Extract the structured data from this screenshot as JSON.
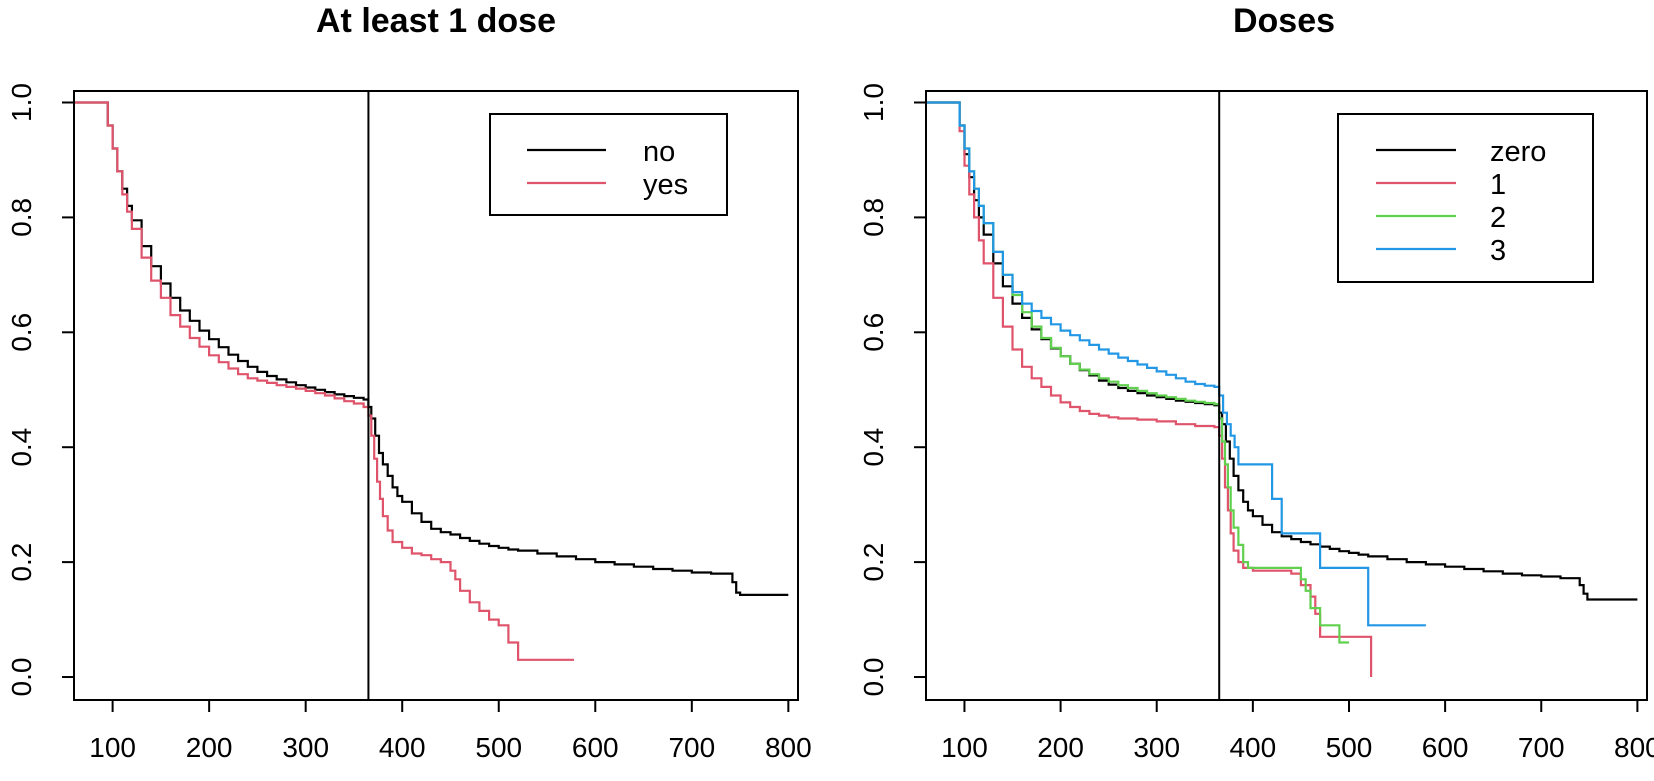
{
  "chart_data": [
    {
      "type": "line",
      "subtype": "step",
      "title": "At least 1 dose",
      "xlabel": "",
      "ylabel": "",
      "xlim": [
        60,
        810
      ],
      "ylim": [
        -0.04,
        1.02
      ],
      "xticks": [
        100,
        200,
        300,
        400,
        500,
        600,
        700,
        800
      ],
      "yticks": [
        0.0,
        0.2,
        0.4,
        0.6,
        0.8,
        1.0
      ],
      "xtick_labels": [
        "100",
        "200",
        "300",
        "400",
        "500",
        "600",
        "700",
        "800"
      ],
      "ytick_labels": [
        "0.0",
        "0.2",
        "0.4",
        "0.6",
        "0.8",
        "1.0"
      ],
      "vline": 365,
      "legend": {
        "position": "top-right",
        "entries": [
          {
            "label": "no",
            "color": "#000000"
          },
          {
            "label": "yes",
            "color": "#DF536B"
          }
        ]
      },
      "series": [
        {
          "name": "no",
          "color": "#000000",
          "x": [
            60,
            91,
            95,
            100,
            105,
            110,
            115,
            120,
            130,
            140,
            150,
            160,
            170,
            180,
            190,
            200,
            210,
            220,
            230,
            240,
            250,
            260,
            270,
            280,
            290,
            300,
            310,
            320,
            330,
            340,
            350,
            360,
            365,
            368,
            372,
            376,
            380,
            385,
            390,
            395,
            400,
            410,
            420,
            430,
            440,
            450,
            460,
            470,
            480,
            490,
            500,
            510,
            520,
            540,
            560,
            580,
            600,
            620,
            640,
            660,
            680,
            700,
            720,
            738,
            742,
            746,
            750,
            800
          ],
          "y": [
            1.0,
            1.0,
            0.96,
            0.92,
            0.88,
            0.85,
            0.82,
            0.795,
            0.75,
            0.715,
            0.685,
            0.66,
            0.638,
            0.62,
            0.603,
            0.588,
            0.574,
            0.561,
            0.55,
            0.54,
            0.531,
            0.524,
            0.518,
            0.513,
            0.508,
            0.504,
            0.5,
            0.496,
            0.492,
            0.489,
            0.486,
            0.483,
            0.47,
            0.45,
            0.42,
            0.39,
            0.37,
            0.35,
            0.33,
            0.315,
            0.305,
            0.285,
            0.27,
            0.258,
            0.252,
            0.248,
            0.242,
            0.237,
            0.232,
            0.228,
            0.225,
            0.222,
            0.22,
            0.215,
            0.21,
            0.205,
            0.2,
            0.196,
            0.192,
            0.188,
            0.185,
            0.182,
            0.18,
            0.18,
            0.165,
            0.147,
            0.143,
            0.143
          ]
        },
        {
          "name": "yes",
          "color": "#DF536B",
          "x": [
            60,
            91,
            95,
            100,
            105,
            110,
            115,
            120,
            130,
            140,
            150,
            160,
            170,
            180,
            190,
            200,
            210,
            220,
            230,
            240,
            250,
            260,
            270,
            280,
            290,
            300,
            310,
            320,
            330,
            340,
            350,
            360,
            365,
            368,
            371,
            374,
            377,
            380,
            385,
            390,
            400,
            410,
            420,
            430,
            440,
            450,
            455,
            460,
            470,
            480,
            490,
            500,
            510,
            520,
            578
          ],
          "y": [
            1.0,
            1.0,
            0.96,
            0.92,
            0.88,
            0.84,
            0.81,
            0.78,
            0.73,
            0.69,
            0.66,
            0.63,
            0.61,
            0.59,
            0.575,
            0.56,
            0.548,
            0.537,
            0.527,
            0.52,
            0.516,
            0.512,
            0.508,
            0.505,
            0.502,
            0.498,
            0.494,
            0.49,
            0.485,
            0.48,
            0.476,
            0.47,
            0.455,
            0.42,
            0.38,
            0.34,
            0.31,
            0.28,
            0.255,
            0.235,
            0.225,
            0.215,
            0.212,
            0.205,
            0.2,
            0.185,
            0.17,
            0.15,
            0.13,
            0.115,
            0.1,
            0.09,
            0.06,
            0.03,
            0.03
          ]
        }
      ]
    },
    {
      "type": "line",
      "subtype": "step",
      "title": "Doses",
      "xlabel": "",
      "ylabel": "",
      "xlim": [
        60,
        810
      ],
      "ylim": [
        -0.04,
        1.02
      ],
      "xticks": [
        100,
        200,
        300,
        400,
        500,
        600,
        700,
        800
      ],
      "yticks": [
        0.0,
        0.2,
        0.4,
        0.6,
        0.8,
        1.0
      ],
      "xtick_labels": [
        "100",
        "200",
        "300",
        "400",
        "500",
        "600",
        "700",
        "800"
      ],
      "ytick_labels": [
        "0.0",
        "0.2",
        "0.4",
        "0.6",
        "0.8",
        "1.0"
      ],
      "vline": 365,
      "legend": {
        "position": "top-right",
        "entries": [
          {
            "label": "zero",
            "color": "#000000"
          },
          {
            "label": "1",
            "color": "#DF536B"
          },
          {
            "label": "2",
            "color": "#61D04F"
          },
          {
            "label": "3",
            "color": "#2297E6"
          }
        ]
      },
      "series": [
        {
          "name": "zero",
          "color": "#000000",
          "x": [
            60,
            91,
            95,
            100,
            105,
            110,
            115,
            120,
            130,
            140,
            150,
            160,
            170,
            180,
            190,
            200,
            210,
            220,
            230,
            240,
            250,
            260,
            270,
            280,
            290,
            300,
            310,
            320,
            330,
            340,
            350,
            360,
            365,
            368,
            372,
            376,
            380,
            385,
            390,
            395,
            400,
            410,
            420,
            430,
            440,
            450,
            460,
            470,
            480,
            490,
            500,
            510,
            520,
            540,
            560,
            580,
            600,
            620,
            640,
            660,
            680,
            700,
            720,
            735,
            740,
            744,
            748,
            800
          ],
          "y": [
            1.0,
            1.0,
            0.96,
            0.91,
            0.87,
            0.83,
            0.8,
            0.77,
            0.72,
            0.68,
            0.65,
            0.625,
            0.605,
            0.588,
            0.572,
            0.558,
            0.545,
            0.534,
            0.525,
            0.516,
            0.509,
            0.503,
            0.498,
            0.494,
            0.49,
            0.487,
            0.484,
            0.481,
            0.479,
            0.477,
            0.475,
            0.473,
            0.46,
            0.44,
            0.41,
            0.38,
            0.35,
            0.325,
            0.305,
            0.29,
            0.28,
            0.265,
            0.252,
            0.245,
            0.24,
            0.235,
            0.231,
            0.227,
            0.223,
            0.219,
            0.216,
            0.213,
            0.21,
            0.205,
            0.2,
            0.196,
            0.192,
            0.188,
            0.184,
            0.18,
            0.177,
            0.175,
            0.172,
            0.172,
            0.16,
            0.145,
            0.135,
            0.135
          ]
        },
        {
          "name": "1",
          "color": "#DF536B",
          "x": [
            60,
            91,
            95,
            100,
            105,
            110,
            115,
            120,
            130,
            140,
            150,
            160,
            170,
            180,
            190,
            200,
            210,
            220,
            230,
            240,
            250,
            260,
            280,
            300,
            320,
            340,
            360,
            365,
            368,
            371,
            374,
            377,
            380,
            385,
            390,
            400,
            440,
            450,
            460,
            465,
            470,
            500,
            522,
            523
          ],
          "y": [
            1.0,
            1.0,
            0.95,
            0.89,
            0.84,
            0.8,
            0.76,
            0.72,
            0.66,
            0.61,
            0.57,
            0.54,
            0.52,
            0.505,
            0.49,
            0.478,
            0.47,
            0.463,
            0.458,
            0.455,
            0.452,
            0.45,
            0.448,
            0.445,
            0.44,
            0.437,
            0.435,
            0.42,
            0.38,
            0.33,
            0.29,
            0.25,
            0.22,
            0.2,
            0.19,
            0.185,
            0.18,
            0.16,
            0.14,
            0.11,
            0.07,
            0.07,
            0.07,
            0.0
          ]
        },
        {
          "name": "2",
          "color": "#61D04F",
          "x": [
            60,
            91,
            95,
            100,
            105,
            110,
            115,
            120,
            130,
            140,
            150,
            160,
            170,
            180,
            190,
            200,
            210,
            220,
            230,
            240,
            250,
            260,
            270,
            280,
            290,
            300,
            310,
            320,
            330,
            340,
            350,
            360,
            365,
            368,
            371,
            374,
            377,
            380,
            385,
            390,
            395,
            400,
            450,
            455,
            460,
            470,
            480,
            490,
            495,
            500
          ],
          "y": [
            1.0,
            1.0,
            0.96,
            0.92,
            0.88,
            0.85,
            0.82,
            0.79,
            0.74,
            0.7,
            0.665,
            0.635,
            0.61,
            0.59,
            0.573,
            0.558,
            0.545,
            0.535,
            0.527,
            0.52,
            0.514,
            0.508,
            0.503,
            0.498,
            0.494,
            0.49,
            0.487,
            0.484,
            0.481,
            0.479,
            0.477,
            0.475,
            0.45,
            0.41,
            0.37,
            0.33,
            0.29,
            0.26,
            0.23,
            0.2,
            0.19,
            0.19,
            0.17,
            0.15,
            0.12,
            0.09,
            0.09,
            0.06,
            0.06,
            0.06
          ]
        },
        {
          "name": "3",
          "color": "#2297E6",
          "x": [
            60,
            91,
            95,
            100,
            105,
            110,
            115,
            120,
            130,
            140,
            150,
            160,
            170,
            180,
            190,
            200,
            210,
            220,
            230,
            240,
            250,
            260,
            270,
            280,
            290,
            300,
            310,
            320,
            330,
            340,
            350,
            360,
            365,
            369,
            373,
            377,
            381,
            385,
            390,
            395,
            400,
            420,
            430,
            440,
            470,
            520,
            580
          ],
          "y": [
            1.0,
            1.0,
            0.96,
            0.92,
            0.88,
            0.85,
            0.82,
            0.79,
            0.74,
            0.7,
            0.67,
            0.65,
            0.637,
            0.625,
            0.614,
            0.603,
            0.595,
            0.586,
            0.578,
            0.57,
            0.563,
            0.556,
            0.55,
            0.544,
            0.538,
            0.532,
            0.526,
            0.52,
            0.514,
            0.51,
            0.507,
            0.505,
            0.49,
            0.46,
            0.44,
            0.42,
            0.4,
            0.37,
            0.37,
            0.37,
            0.37,
            0.31,
            0.25,
            0.25,
            0.19,
            0.09,
            0.09
          ]
        }
      ]
    }
  ]
}
